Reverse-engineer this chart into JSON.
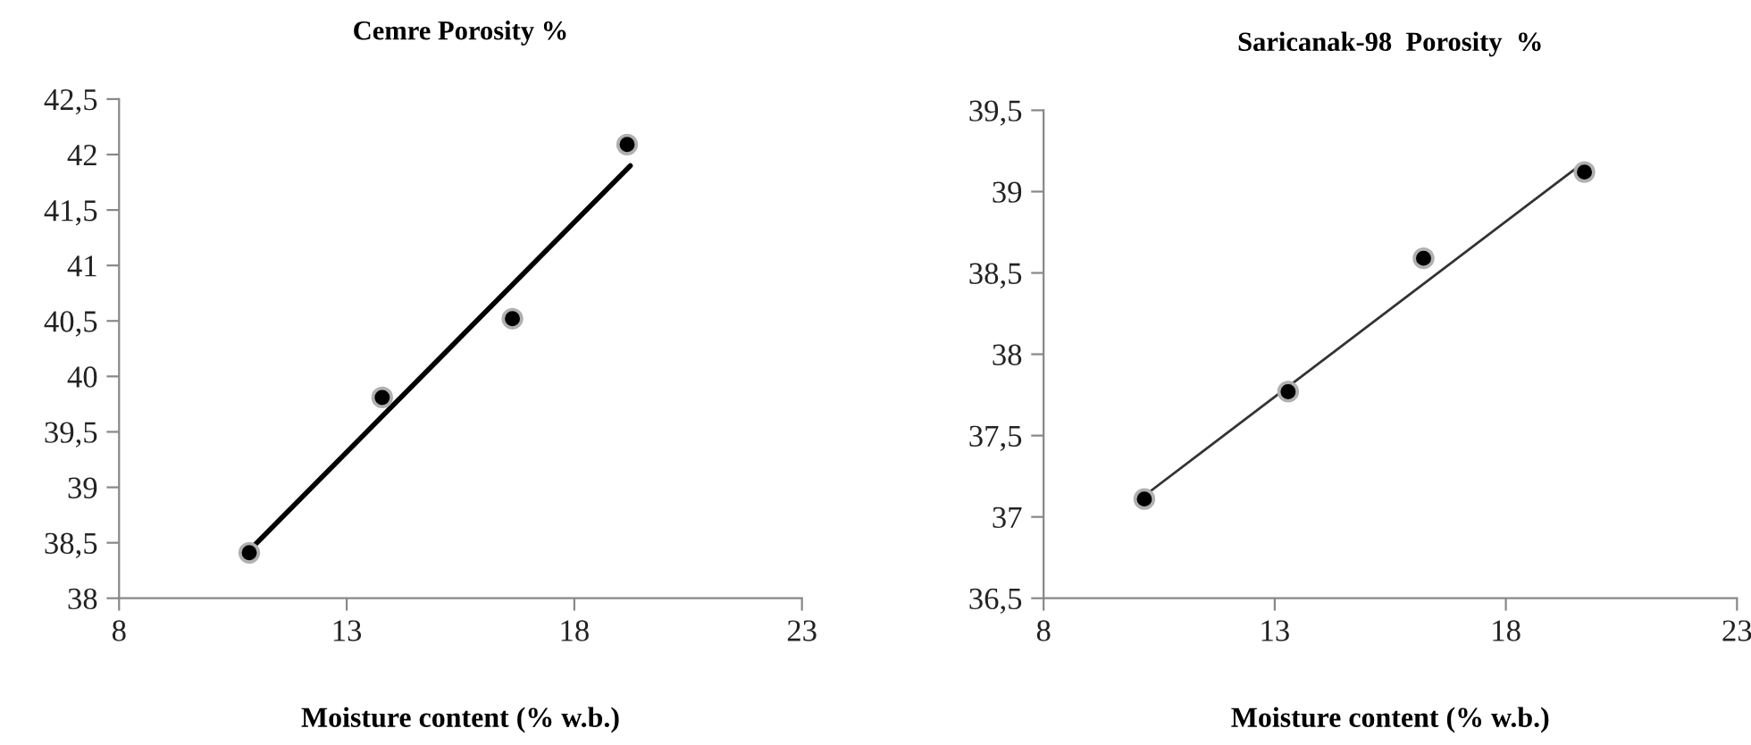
{
  "chart_data": [
    {
      "type": "scatter",
      "title": "Cemre Porosity %",
      "xlabel": "Moisture content (% w.b.)",
      "grid": false,
      "legend": false,
      "xlim": [
        8,
        23
      ],
      "xticks": [
        8,
        13,
        18,
        23
      ],
      "ylim": [
        38,
        42.5
      ],
      "yticks": [
        38,
        {
          "value": 38.5,
          "label": "38,5"
        },
        39,
        {
          "value": 39.5,
          "label": "39,5"
        },
        40,
        {
          "value": 40.5,
          "label": "40,5"
        },
        41,
        {
          "value": 41.5,
          "label": "41,5"
        },
        42,
        {
          "value": 42.5,
          "label": "42,5"
        }
      ],
      "series": [
        {
          "marker": "circle",
          "color": "#000000",
          "x": [
            10.86,
            13.78,
            16.64,
            19.16
          ],
          "values": [
            38.41,
            39.81,
            40.52,
            42.09
          ]
        },
        {
          "type": "line",
          "color": "#000000",
          "x": [
            10.86,
            19.23
          ],
          "values": [
            38.43,
            41.9
          ]
        }
      ]
    },
    {
      "type": "scatter",
      "title": "Saricanak-98  Porosity  %",
      "xlabel": "Moisture content (% w.b.)",
      "grid": false,
      "legend": false,
      "xlim": [
        8,
        23
      ],
      "xticks": [
        8,
        13,
        18,
        23
      ],
      "ylim": [
        36.5,
        39.5
      ],
      "yticks": [
        {
          "value": 36.5,
          "label": "36,5"
        },
        37,
        {
          "value": 37.5,
          "label": "37,5"
        },
        38,
        {
          "value": 38.5,
          "label": "38,5"
        },
        39,
        {
          "value": 39.5,
          "label": "39,5"
        }
      ],
      "series": [
        {
          "marker": "circle",
          "color": "#000000",
          "x": [
            10.18,
            13.29,
            16.22,
            19.7
          ],
          "values": [
            37.11,
            37.77,
            38.59,
            39.12
          ]
        },
        {
          "type": "line",
          "color": "#333333",
          "x": [
            10.18,
            19.64
          ],
          "values": [
            37.13,
            39.17
          ]
        }
      ]
    }
  ]
}
